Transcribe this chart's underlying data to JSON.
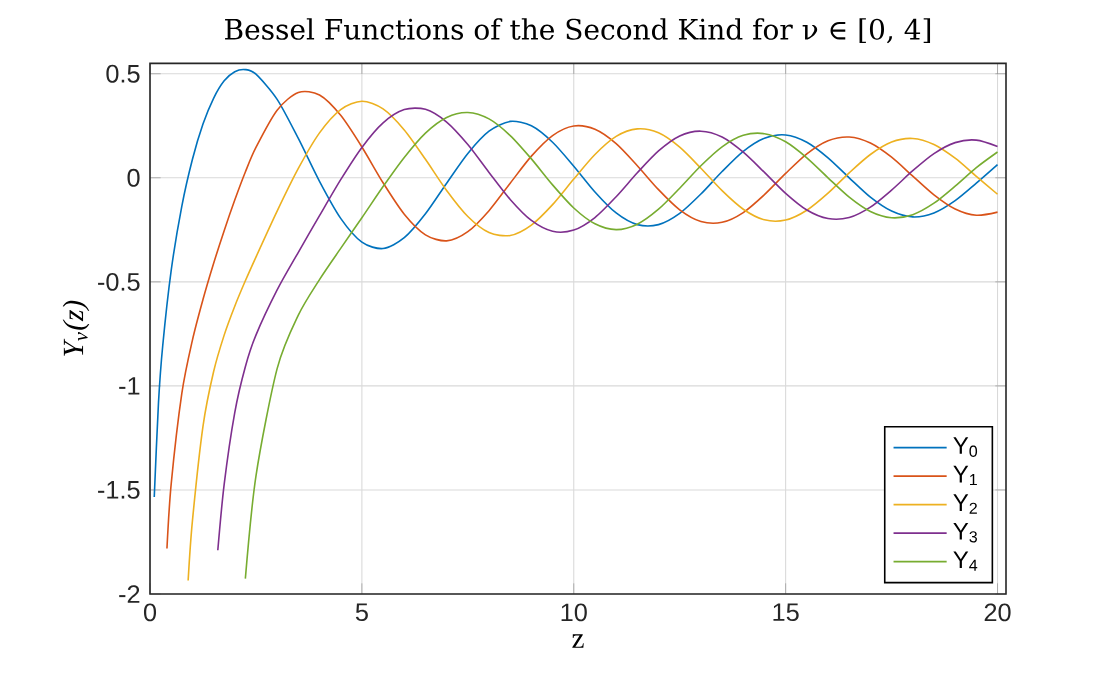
{
  "chart_data": {
    "type": "line",
    "title": "Bessel Functions of the Second Kind for ν ∈ [0, 4]",
    "xlabel": "z",
    "ylabel": "Y$_{ν}$(z)",
    "xlim": [
      0,
      20.2
    ],
    "ylim": [
      -2,
      0.55
    ],
    "xticks": [
      0,
      5,
      10,
      15,
      20
    ],
    "yticks": [
      -2,
      -1.5,
      -1,
      -0.5,
      0,
      0.5
    ],
    "grid": true,
    "legend": "bottom right",
    "marker": "none",
    "line_style": "solid",
    "series": [
      {
        "name": "Y$_{0}$",
        "color": "#0072bd",
        "x": [
          0.1,
          0.2,
          0.3,
          0.5,
          0.75,
          1,
          1.25,
          1.5,
          1.75,
          2,
          2.25,
          2.5,
          3,
          3.5,
          4,
          4.5,
          5,
          5.5,
          6,
          6.5,
          7,
          7.5,
          8,
          8.5,
          9,
          9.5,
          10,
          10.5,
          11,
          11.5,
          12,
          12.5,
          13,
          13.5,
          14,
          14.5,
          15,
          15.5,
          16,
          16.5,
          17,
          17.5,
          18,
          18.5,
          19,
          19.5,
          20
        ],
        "values": [
          -1.534,
          -1.081,
          -0.807,
          -0.445,
          -0.137,
          0.088,
          0.258,
          0.382,
          0.466,
          0.51,
          0.52,
          0.498,
          0.377,
          0.189,
          -0.017,
          -0.195,
          -0.309,
          -0.34,
          -0.288,
          -0.173,
          -0.026,
          0.117,
          0.224,
          0.271,
          0.25,
          0.171,
          0.056,
          -0.068,
          -0.169,
          -0.225,
          -0.225,
          -0.171,
          -0.078,
          0.03,
          0.127,
          0.19,
          0.206,
          0.171,
          0.096,
          0.0,
          -0.093,
          -0.16,
          -0.188,
          -0.169,
          -0.11,
          -0.026,
          0.063
        ]
      },
      {
        "name": "Y$_{1}$",
        "color": "#d95319",
        "x": [
          0.4,
          0.5,
          0.75,
          1,
          1.25,
          1.5,
          1.75,
          2,
          2.25,
          2.5,
          3,
          3.5,
          4,
          4.5,
          5,
          5.5,
          6,
          6.5,
          7,
          7.5,
          8,
          8.5,
          9,
          9.5,
          10,
          10.5,
          11,
          11.5,
          12,
          12.5,
          13,
          13.5,
          14,
          14.5,
          15,
          15.5,
          16,
          16.5,
          17,
          17.5,
          18,
          18.5,
          19,
          19.5,
          20
        ],
        "values": [
          -1.781,
          -1.471,
          -1.037,
          -0.781,
          -0.585,
          -0.412,
          -0.254,
          -0.107,
          0.028,
          0.146,
          0.325,
          0.41,
          0.398,
          0.3,
          0.148,
          -0.024,
          -0.175,
          -0.274,
          -0.303,
          -0.259,
          -0.158,
          -0.026,
          0.104,
          0.203,
          0.249,
          0.233,
          0.164,
          0.058,
          -0.057,
          -0.154,
          -0.21,
          -0.214,
          -0.167,
          -0.081,
          0.021,
          0.115,
          0.178,
          0.196,
          0.167,
          0.099,
          0.008,
          -0.082,
          -0.15,
          -0.18,
          -0.165
        ]
      },
      {
        "name": "Y$_{2}$",
        "color": "#edb120",
        "x": [
          0.9,
          1,
          1.25,
          1.5,
          1.75,
          2,
          2.25,
          2.5,
          3,
          3.5,
          4,
          4.5,
          5,
          5.5,
          6,
          6.5,
          7,
          7.5,
          8,
          8.5,
          9,
          9.5,
          10,
          10.5,
          11,
          11.5,
          12,
          12.5,
          13,
          13.5,
          14,
          14.5,
          15,
          15.5,
          16,
          16.5,
          17,
          17.5,
          18,
          18.5,
          19,
          19.5,
          20
        ],
        "values": [
          -1.935,
          -1.651,
          -1.194,
          -0.932,
          -0.756,
          -0.617,
          -0.495,
          -0.381,
          -0.16,
          0.045,
          0.216,
          0.328,
          0.368,
          0.331,
          0.23,
          0.089,
          -0.061,
          -0.186,
          -0.263,
          -0.277,
          -0.227,
          -0.129,
          -0.006,
          0.112,
          0.199,
          0.235,
          0.216,
          0.147,
          0.046,
          -0.062,
          -0.151,
          -0.202,
          -0.203,
          -0.156,
          -0.074,
          0.024,
          0.112,
          0.172,
          0.189,
          0.16,
          0.094,
          0.007,
          -0.079
        ]
      },
      {
        "name": "Y$_{3}$",
        "color": "#7e2f8e",
        "x": [
          1.6,
          1.75,
          2,
          2.25,
          2.5,
          3,
          3.5,
          4,
          4.5,
          5,
          5.5,
          6,
          6.5,
          7,
          7.5,
          8,
          8.5,
          9,
          9.5,
          10,
          10.5,
          11,
          11.5,
          12,
          12.5,
          13,
          13.5,
          14,
          14.5,
          15,
          15.5,
          16,
          16.5,
          17,
          17.5,
          18,
          18.5,
          19,
          19.5,
          20
        ],
        "values": [
          -1.79,
          -1.473,
          -1.128,
          -0.908,
          -0.756,
          -0.539,
          -0.358,
          -0.182,
          -0.009,
          0.146,
          0.264,
          0.328,
          0.329,
          0.268,
          0.16,
          0.026,
          -0.104,
          -0.205,
          -0.257,
          -0.251,
          -0.191,
          -0.091,
          0.024,
          0.129,
          0.201,
          0.224,
          0.196,
          0.123,
          0.026,
          -0.075,
          -0.155,
          -0.196,
          -0.191,
          -0.141,
          -0.059,
          0.034,
          0.116,
          0.169,
          0.181,
          0.15
        ]
      },
      {
        "name": "Y$_{4}$",
        "color": "#77ac30",
        "x": [
          2.25,
          2.5,
          3,
          3.5,
          4,
          4.5,
          5,
          5.5,
          6,
          6.5,
          7,
          7.5,
          8,
          8.5,
          9,
          9.5,
          10,
          10.5,
          11,
          11.5,
          12,
          12.5,
          13,
          13.5,
          14,
          14.5,
          15,
          15.5,
          16,
          16.5,
          17,
          17.5,
          18,
          18.5,
          19,
          19.5,
          20
        ],
        "values": [
          -1.926,
          -1.433,
          -0.917,
          -0.66,
          -0.489,
          -0.339,
          -0.192,
          -0.042,
          0.098,
          0.215,
          0.29,
          0.314,
          0.283,
          0.203,
          0.091,
          -0.034,
          -0.145,
          -0.221,
          -0.249,
          -0.223,
          -0.151,
          -0.05,
          0.058,
          0.149,
          0.204,
          0.212,
          0.173,
          0.096,
          0.0,
          -0.093,
          -0.162,
          -0.192,
          -0.177,
          -0.122,
          -0.04,
          0.049,
          0.124
        ]
      }
    ]
  }
}
